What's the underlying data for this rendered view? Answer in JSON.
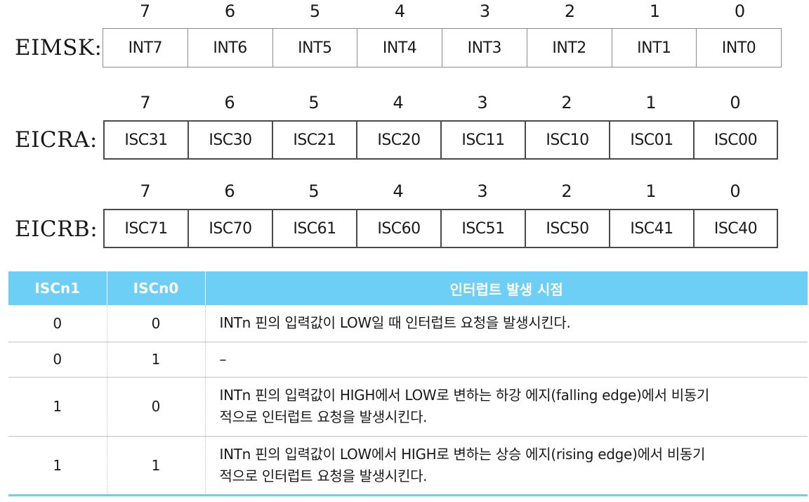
{
  "bit_numbers": [
    "7",
    "6",
    "5",
    "4",
    "3",
    "2",
    "1",
    "0"
  ],
  "registers": [
    {
      "name": "EIMSK:",
      "bits": [
        "INT7",
        "INT6",
        "INT5",
        "INT4",
        "INT3",
        "INT2",
        "INT1",
        "INT0"
      ]
    },
    {
      "name": "EICRA:",
      "bits": [
        "ISC31",
        "ISC30",
        "ISC21",
        "ISC20",
        "ISC11",
        "ISC10",
        "ISC01",
        "ISC00"
      ]
    },
    {
      "name": "EICRB:",
      "bits": [
        "ISC71",
        "ISC70",
        "ISC61",
        "ISC60",
        "ISC51",
        "ISC50",
        "ISC41",
        "ISC40"
      ]
    }
  ],
  "table": {
    "headers": [
      "ISCn1",
      "ISCn0",
      "인터럽트 발생 시점"
    ],
    "rows": [
      {
        "iscn1": "0",
        "iscn0": "0",
        "desc_line1": "INTn 핀의 입력값이 LOW일 때 인터럽트 요청을 발생시킨다.",
        "desc_line2": ""
      },
      {
        "iscn1": "0",
        "iscn0": "1",
        "desc_line1": "–",
        "desc_line2": ""
      },
      {
        "iscn1": "1",
        "iscn0": "0",
        "desc_line1": "INTn 핀의 입력값이 HIGH에서 LOW로 변하는 하강 에지(falling edge)에서 비동기",
        "desc_line2": "적으로 인터럽트 요청을 발생시킨다."
      },
      {
        "iscn1": "1",
        "iscn0": "1",
        "desc_line1": "INTn 핀의 입력값이 LOW에서 HIGH로 변하는 상승 에지(rising edge)에서 비동기",
        "desc_line2": "적으로 인터럽트 요청을 발생시킨다."
      }
    ]
  },
  "colors": {
    "header_bg": "#6dcff6",
    "header_text": "#ffffff",
    "accent_line": "#6dcff6"
  }
}
